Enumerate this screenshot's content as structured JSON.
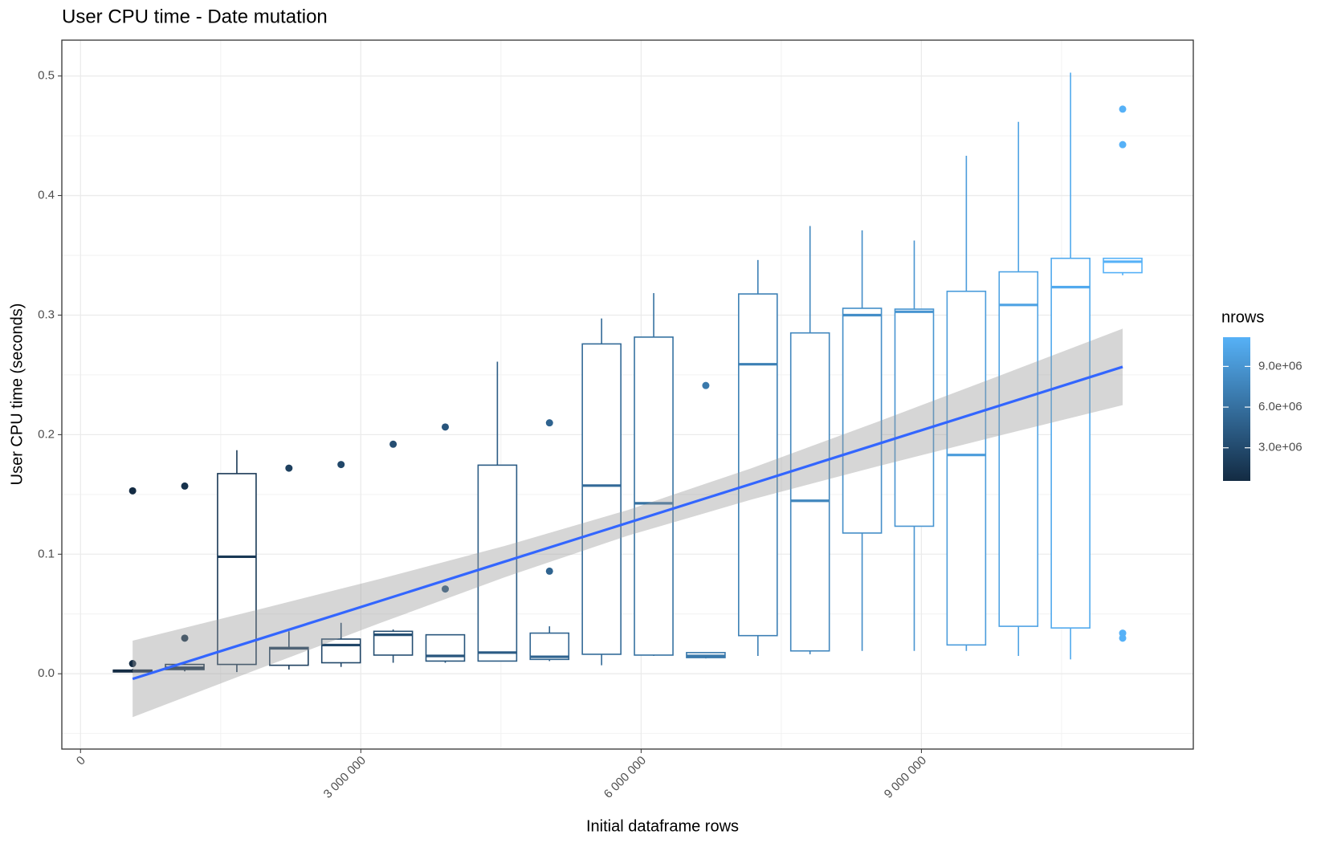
{
  "chart_data": {
    "type": "boxplot",
    "title": "User CPU time - Date mutation",
    "x_label": "Initial dataframe rows",
    "y_label": "User CPU time (seconds)",
    "xlim": [
      -200000,
      11910000
    ],
    "ylim": [
      -0.063,
      0.53
    ],
    "xticks": [
      {
        "value": 0,
        "label": "0"
      },
      {
        "value": 3000000,
        "label": "3 000 000"
      },
      {
        "value": 6000000,
        "label": "6 000 000"
      },
      {
        "value": 9000000,
        "label": "9 000 000"
      }
    ],
    "yticks": [
      {
        "value": 0,
        "label": "0.0"
      },
      0.1,
      0.2,
      0.3,
      0.4,
      0.5
    ],
    "grid": true,
    "color_scale": {
      "title": "nrows",
      "low": "#132B43",
      "high": "#56B1F7",
      "ticks": [
        {
          "value": 3000000,
          "label": "3.0e+06"
        },
        {
          "value": 6000000,
          "label": "6.0e+06"
        },
        {
          "value": 9000000,
          "label": "9.0e+06"
        }
      ]
    },
    "boxes": [
      {
        "x": 557700,
        "lower": 0.001,
        "q1": 0.0015,
        "median": 0.0025,
        "q3": 0.003,
        "upper": 0.004,
        "outliers": [
          0.153,
          0.0085
        ]
      },
      {
        "x": 1115400,
        "lower": 0.002,
        "q1": 0.0035,
        "median": 0.005,
        "q3": 0.0078,
        "upper": 0.0085,
        "outliers": [
          0.157,
          0.0298
        ]
      },
      {
        "x": 1673100,
        "lower": 0.0014,
        "q1": 0.0078,
        "median": 0.0979,
        "q3": 0.1674,
        "upper": 0.187,
        "outliers": []
      },
      {
        "x": 2230800,
        "lower": 0.0035,
        "q1": 0.0071,
        "median": 0.0213,
        "q3": 0.022,
        "upper": 0.0355,
        "outliers": [
          0.172
        ]
      },
      {
        "x": 2788500,
        "lower": 0.0057,
        "q1": 0.0092,
        "median": 0.024,
        "q3": 0.029,
        "upper": 0.0426,
        "outliers": [
          0.175
        ]
      },
      {
        "x": 3346200,
        "lower": 0.0092,
        "q1": 0.0156,
        "median": 0.0326,
        "q3": 0.0355,
        "upper": 0.037,
        "outliers": [
          0.192
        ]
      },
      {
        "x": 3903900,
        "lower": 0.0092,
        "q1": 0.0106,
        "median": 0.0149,
        "q3": 0.0326,
        "upper": 0.0326,
        "outliers": [
          0.2064,
          0.0709
        ]
      },
      {
        "x": 4461600,
        "lower": 0.0106,
        "q1": 0.0106,
        "median": 0.0177,
        "q3": 0.1745,
        "upper": 0.261,
        "outliers": []
      },
      {
        "x": 5019300,
        "lower": 0.0106,
        "q1": 0.012,
        "median": 0.0142,
        "q3": 0.034,
        "upper": 0.0397,
        "outliers": [
          0.2099,
          0.0858
        ]
      },
      {
        "x": 5577000,
        "lower": 0.0071,
        "q1": 0.0163,
        "median": 0.1574,
        "q3": 0.2759,
        "upper": 0.2972,
        "outliers": []
      },
      {
        "x": 6134700,
        "lower": 0.0149,
        "q1": 0.0156,
        "median": 0.1426,
        "q3": 0.2816,
        "upper": 0.3184,
        "outliers": []
      },
      {
        "x": 6692400,
        "lower": 0.0128,
        "q1": 0.0135,
        "median": 0.0149,
        "q3": 0.0177,
        "upper": 0.0177,
        "outliers": [
          0.2411
        ]
      },
      {
        "x": 7250100,
        "lower": 0.0149,
        "q1": 0.0319,
        "median": 0.2589,
        "q3": 0.3177,
        "upper": 0.3461,
        "outliers": []
      },
      {
        "x": 7807800,
        "lower": 0.0163,
        "q1": 0.0191,
        "median": 0.1447,
        "q3": 0.2851,
        "upper": 0.3745,
        "outliers": []
      },
      {
        "x": 8365500,
        "lower": 0.0191,
        "q1": 0.1177,
        "median": 0.3,
        "q3": 0.3057,
        "upper": 0.3709,
        "outliers": []
      },
      {
        "x": 8923200,
        "lower": 0.0191,
        "q1": 0.1234,
        "median": 0.3028,
        "q3": 0.305,
        "upper": 0.3624,
        "outliers": []
      },
      {
        "x": 9480900,
        "lower": 0.0191,
        "q1": 0.0241,
        "median": 0.183,
        "q3": 0.3199,
        "upper": 0.4333,
        "outliers": []
      },
      {
        "x": 10038600,
        "lower": 0.0149,
        "q1": 0.0397,
        "median": 0.3085,
        "q3": 0.3362,
        "upper": 0.4617,
        "outliers": []
      },
      {
        "x": 10596300,
        "lower": 0.012,
        "q1": 0.0383,
        "median": 0.3234,
        "q3": 0.3475,
        "upper": 0.5028,
        "outliers": []
      },
      {
        "x": 11154000,
        "lower": 0.3333,
        "q1": 0.3355,
        "median": 0.3447,
        "q3": 0.3475,
        "upper": 0.3475,
        "outliers": [
          0.4723,
          0.4426,
          0.034,
          0.0298
        ]
      }
    ],
    "smooth": {
      "color": "#3366FF",
      "band_color": "#999999",
      "x": [
        557700,
        1882238,
        3206775,
        4531313,
        5855850,
        7180388,
        8504925,
        9829463,
        11154000
      ],
      "y": [
        -0.0043,
        0.0283,
        0.0609,
        0.0936,
        0.1262,
        0.1588,
        0.1915,
        0.2241,
        0.2567
      ],
      "ymin": [
        -0.0363,
        0.0033,
        0.0424,
        0.0805,
        0.1155,
        0.1457,
        0.173,
        0.1991,
        0.2247
      ],
      "ymax": [
        0.0277,
        0.0533,
        0.0794,
        0.1067,
        0.1369,
        0.1719,
        0.21,
        0.2491,
        0.2887
      ]
    }
  }
}
